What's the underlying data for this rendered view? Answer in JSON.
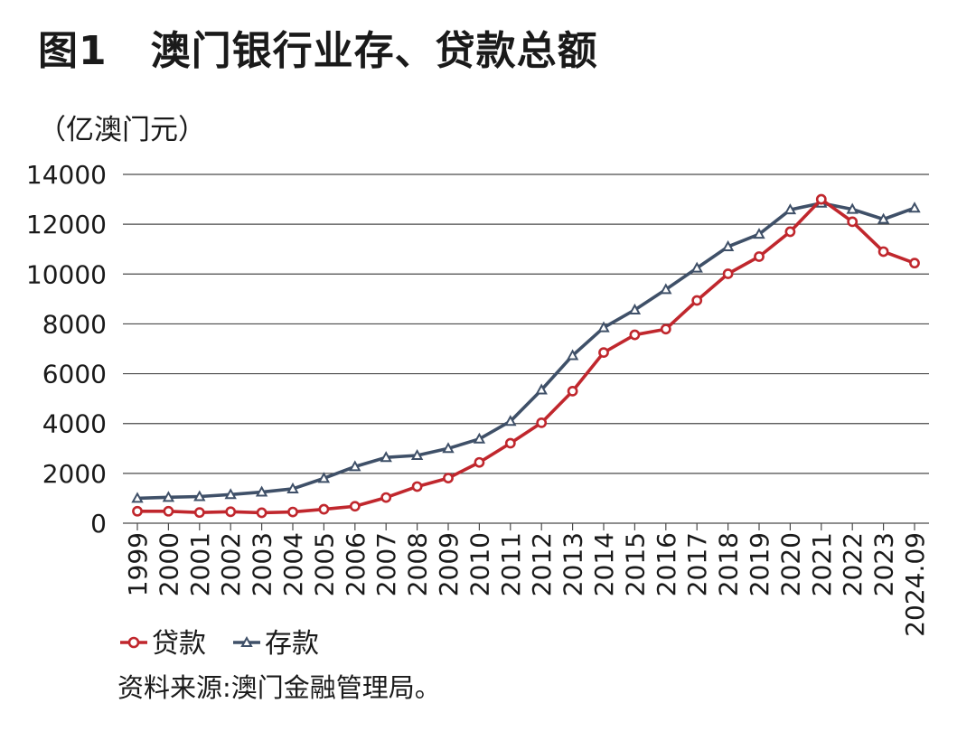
{
  "header": {
    "figure_label": "图1",
    "title": "澳门银行业存、贷款总额"
  },
  "footer": {
    "source": "资料来源:澳门金融管理局。"
  },
  "chart_data": {
    "type": "line",
    "title": "澳门银行业存、贷款总额",
    "ylabel": "（亿澳门元）",
    "xlabel": "",
    "ylim": [
      0,
      14000
    ],
    "yticks": [
      0,
      2000,
      4000,
      6000,
      8000,
      10000,
      12000,
      14000
    ],
    "grid": true,
    "legend_position": "bottom-left",
    "categories": [
      "1999",
      "2000",
      "2001",
      "2002",
      "2003",
      "2004",
      "2005",
      "2006",
      "2007",
      "2008",
      "2009",
      "2010",
      "2011",
      "2012",
      "2013",
      "2014",
      "2015",
      "2016",
      "2017",
      "2018",
      "2019",
      "2020",
      "2021",
      "2022",
      "2023",
      "2024.09"
    ],
    "series": [
      {
        "name": "贷款",
        "color": "#c0272d",
        "marker": "circle",
        "values": [
          480,
          480,
          430,
          460,
          420,
          450,
          560,
          680,
          1030,
          1470,
          1810,
          2440,
          3210,
          4030,
          5300,
          6850,
          7560,
          7790,
          8940,
          10010,
          10700,
          11700,
          13000,
          12100,
          10900,
          10440
        ]
      },
      {
        "name": "存款",
        "color": "#3f5068",
        "marker": "triangle",
        "values": [
          1000,
          1040,
          1070,
          1150,
          1250,
          1380,
          1800,
          2270,
          2640,
          2720,
          3000,
          3380,
          4090,
          5350,
          6730,
          7850,
          8560,
          9380,
          10240,
          11100,
          11600,
          12580,
          12850,
          12600,
          12200,
          12650
        ]
      }
    ]
  }
}
